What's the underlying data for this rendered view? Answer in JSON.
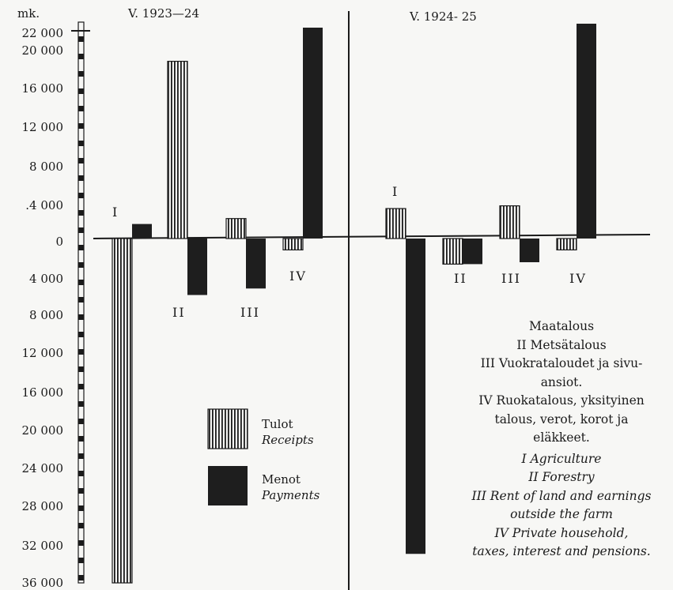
{
  "chart_data": {
    "type": "bar",
    "unit_label": "mk.",
    "y_ticks_above": [
      "22 000",
      "20 000",
      "16 000",
      "12 000",
      "8 000",
      ".4 000",
      "0"
    ],
    "y_ticks_below": [
      "4 000",
      "8 000",
      "12 000",
      "16 000",
      "20 000",
      "24 000",
      "28 000",
      "32 000",
      "36 000"
    ],
    "panels": [
      {
        "title": "V. 1923—24",
        "categories": [
          "I",
          "II",
          "III",
          "IV"
        ],
        "series": [
          {
            "name": "Tulot",
            "values": [
              -36000,
              18700,
              2200,
              -1200
            ]
          },
          {
            "name": "Menot",
            "values": [
              1600,
              -6000,
              -5300,
              22500
            ]
          }
        ]
      },
      {
        "title": "V. 1924- 25",
        "categories": [
          "I",
          "II",
          "III",
          "IV"
        ],
        "series": [
          {
            "name": "Tulot",
            "values": [
              3300,
              -2700,
              3600,
              -1200
            ]
          },
          {
            "name": "Menot",
            "values": [
              -33000,
              -2700,
              -2500,
              23000
            ]
          }
        ]
      }
    ],
    "legend": [
      {
        "fi": "Tulot",
        "en": "Receipts",
        "pattern": "striped"
      },
      {
        "fi": "Menot",
        "en": "Payments",
        "pattern": "solid"
      }
    ],
    "category_names_fi": [
      "Maatalous",
      "II Metsätalous",
      "III Vuokrataloudet ja sivu-",
      "ansiot.",
      "IV Ruokatalous, yksityinen",
      "talous, verot, korot ja",
      "eläkkeet."
    ],
    "category_names_en": [
      "I Agriculture",
      "II Forestry",
      "III Rent of land and earnings",
      "outside the farm",
      "IV Private household,",
      "taxes, interest and pensions."
    ]
  },
  "colors": {
    "ink": "#1a1a1a",
    "paper": "#f7f7f5"
  }
}
